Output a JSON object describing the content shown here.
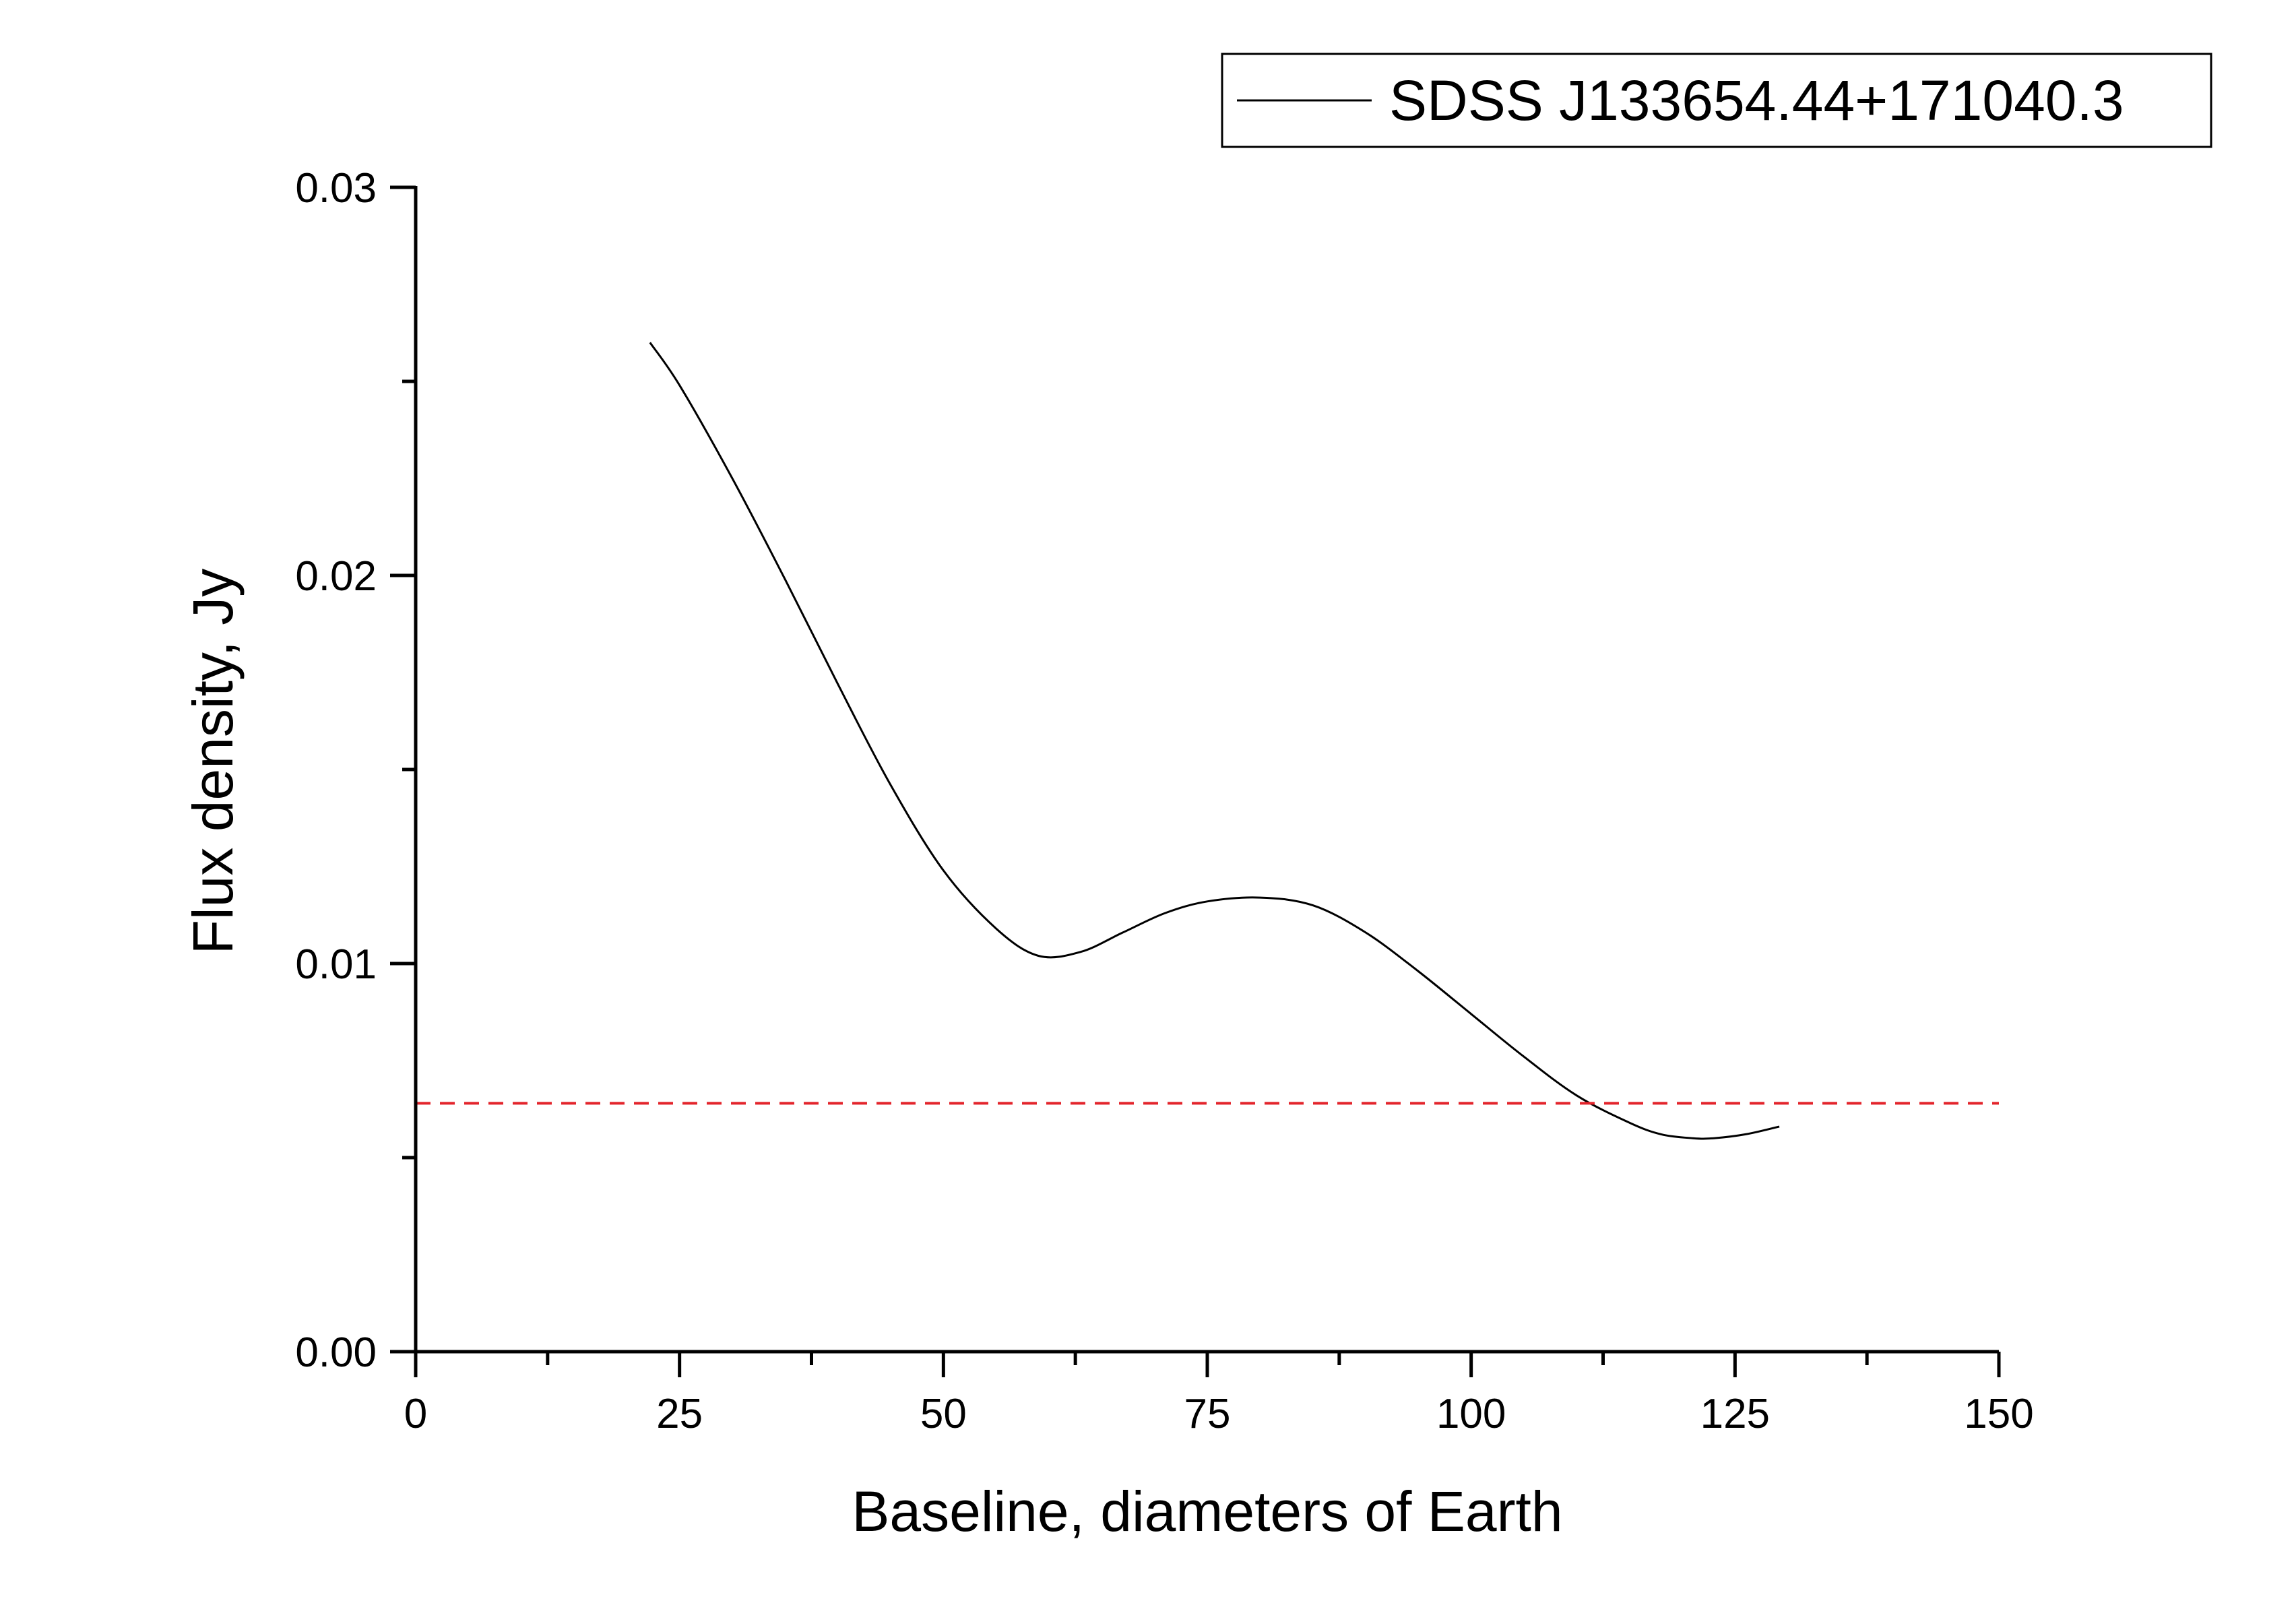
{
  "chart_data": {
    "type": "line",
    "title": "",
    "xlabel": "Baseline, diameters of Earth",
    "ylabel": "Flux density, Jy",
    "xlim": [
      0,
      150
    ],
    "ylim": [
      0,
      0.03
    ],
    "x_ticks": [
      0,
      25,
      50,
      75,
      100,
      125,
      150
    ],
    "x_tick_labels": [
      "0",
      "25",
      "50",
      "75",
      "100",
      "125",
      "150"
    ],
    "y_ticks": [
      0,
      0.01,
      0.02,
      0.03
    ],
    "y_tick_labels": [
      "0.00",
      "0.01",
      "0.02",
      "0.03"
    ],
    "grid": false,
    "legend_position": "top-right",
    "series": [
      {
        "name": "SDSS J133654.44+171040.3",
        "color": "#000000",
        "style": "solid",
        "x": [
          22.2,
          25,
          30,
          35,
          40,
          45,
          50,
          55,
          59,
          63,
          67,
          71,
          75,
          80,
          85,
          90,
          95,
          100,
          105,
          110,
          115,
          118,
          121,
          123,
          126,
          129.2
        ],
        "y": [
          0.026,
          0.0249,
          0.0225,
          0.0199,
          0.0172,
          0.0146,
          0.0124,
          0.0109,
          0.0102,
          0.0103,
          0.0108,
          0.0113,
          0.0116,
          0.0117,
          0.0115,
          0.0108,
          0.0098,
          0.0087,
          0.0076,
          0.0066,
          0.0059,
          0.0056,
          0.0055,
          0.0055,
          0.0056,
          0.0058
        ]
      },
      {
        "color": "#e3242b",
        "style": "dashed",
        "x": [
          0,
          150
        ],
        "y": [
          0.0064,
          0.0064
        ]
      }
    ]
  }
}
